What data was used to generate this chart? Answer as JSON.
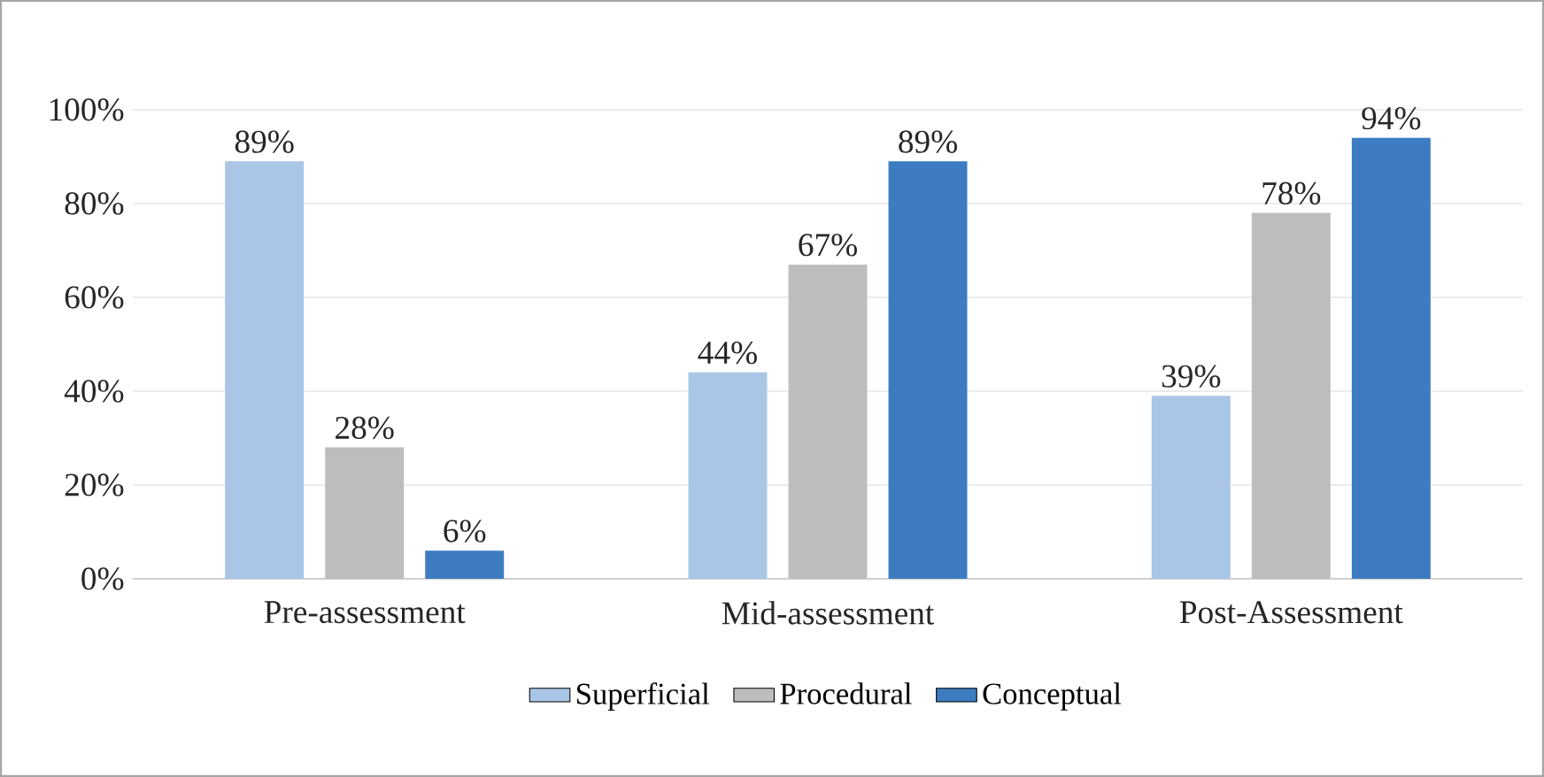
{
  "chart_data": {
    "type": "bar",
    "categories": [
      "Pre-assessment",
      "Mid-assessment",
      "Post-Assessment"
    ],
    "series": [
      {
        "name": "Superficial",
        "color": "#a9c6e6",
        "values": [
          89,
          44,
          39
        ],
        "value_labels": [
          "89%",
          "44%",
          "39%"
        ]
      },
      {
        "name": "Procedural",
        "color": "#bdbdbd",
        "values": [
          28,
          67,
          78
        ],
        "value_labels": [
          "28%",
          "67%",
          "78%"
        ]
      },
      {
        "name": "Conceptual",
        "color": "#3d7cc0",
        "values": [
          6,
          89,
          94
        ],
        "value_labels": [
          "6%",
          "89%",
          "94%"
        ]
      }
    ],
    "ylim": [
      0,
      100
    ],
    "yticks": [
      {
        "value": 0,
        "label": "0%"
      },
      {
        "value": 20,
        "label": "20%"
      },
      {
        "value": 40,
        "label": "40%"
      },
      {
        "value": 60,
        "label": "60%"
      },
      {
        "value": 80,
        "label": "80%"
      },
      {
        "value": 100,
        "label": "100%"
      }
    ],
    "grid": "y",
    "legend": "bottom"
  }
}
